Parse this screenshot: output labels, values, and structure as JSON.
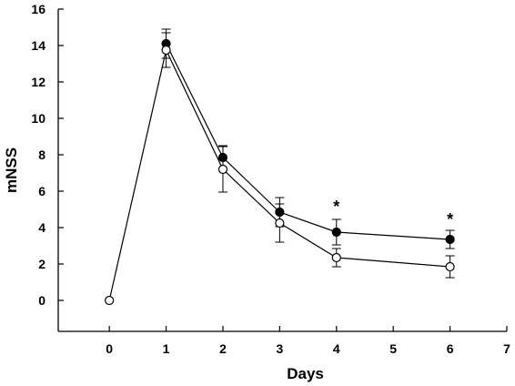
{
  "chart_data": {
    "type": "line",
    "xlabel": "Days",
    "ylabel": "mNSS",
    "xlim": [
      -0.9,
      7
    ],
    "ylim": [
      -1.7,
      16
    ],
    "xticks": [
      0,
      1,
      2,
      3,
      4,
      5,
      6,
      7
    ],
    "yticks": [
      0,
      2,
      4,
      6,
      8,
      10,
      12,
      14,
      16
    ],
    "grid": false,
    "legend": "none",
    "series": [
      {
        "marker": "filled-circle",
        "color": "#000000",
        "x": [
          1,
          2,
          3,
          4,
          6
        ],
        "y": [
          14.1,
          7.85,
          4.85,
          3.75,
          3.35
        ],
        "error": [
          0.8,
          0.65,
          0.8,
          0.7,
          0.5
        ]
      },
      {
        "marker": "open-circle",
        "color": "#000000",
        "x": [
          0,
          1,
          2,
          3,
          4,
          6
        ],
        "y": [
          0,
          13.75,
          7.2,
          4.25,
          2.35,
          1.85
        ],
        "error": [
          0,
          0.95,
          1.25,
          1.05,
          0.5,
          0.6
        ]
      }
    ],
    "annotations": [
      {
        "text": "*",
        "x": 4,
        "y": 5.25
      },
      {
        "text": "*",
        "x": 6,
        "y": 4.55
      }
    ]
  }
}
